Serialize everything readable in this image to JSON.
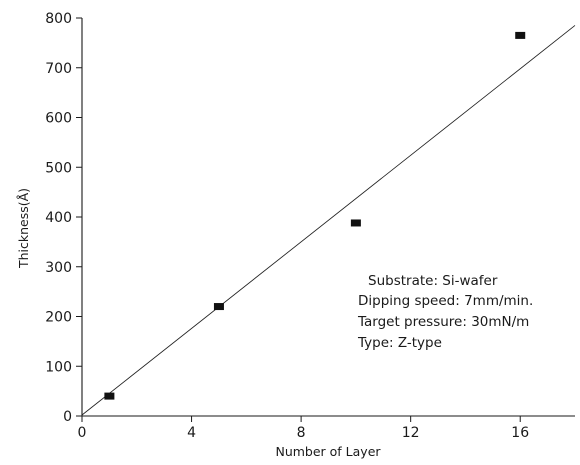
{
  "chart_data": {
    "type": "scatter",
    "xlabel": "Number of Layer",
    "ylabel": "Thickness(Å)",
    "xlim": [
      0,
      18
    ],
    "ylim": [
      0,
      800
    ],
    "xticks": [
      0,
      4,
      8,
      12,
      16
    ],
    "yticks": [
      0,
      100,
      200,
      300,
      400,
      500,
      600,
      700,
      800
    ],
    "xtick_labels": [
      "0",
      "4",
      "8",
      "12",
      "16"
    ],
    "ytick_labels": [
      "0",
      "100",
      "200",
      "300",
      "400",
      "500",
      "600",
      "700",
      "800"
    ],
    "series": [
      {
        "marker": "square",
        "color": "#111111",
        "x": [
          1,
          5,
          10,
          16
        ],
        "y": [
          40,
          220,
          388,
          765
        ]
      }
    ],
    "fit_line": {
      "x": [
        0,
        18
      ],
      "y": [
        2,
        785
      ],
      "color": "#202020"
    },
    "grid": false,
    "annotations": [
      "Substrate: Si-wafer",
      "Dipping speed: 7mm/min.",
      "Target pressure: 30mN/m",
      "Type: Z-type"
    ]
  }
}
